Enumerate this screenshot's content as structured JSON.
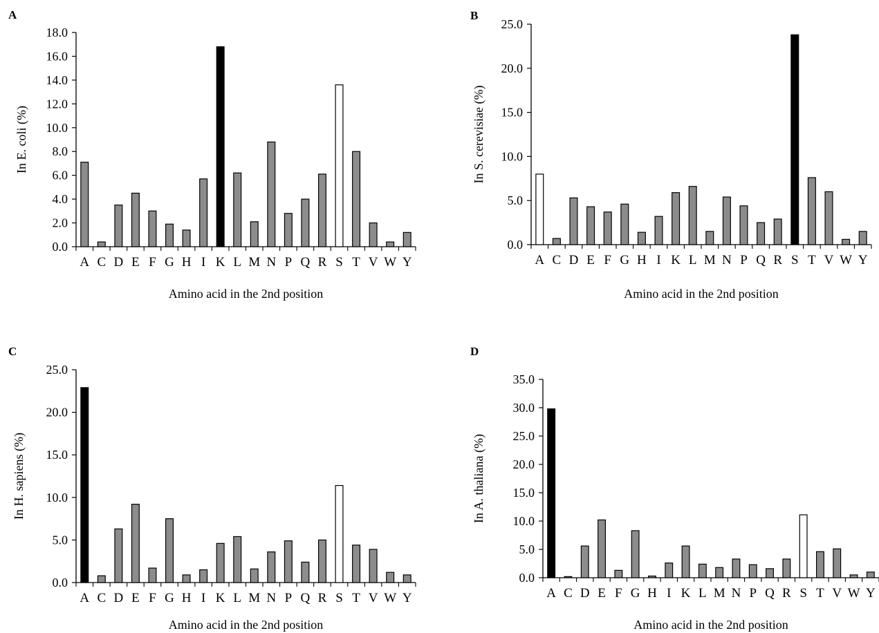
{
  "chart_data": [
    {
      "panel": "A",
      "type": "bar",
      "categories": [
        "A",
        "C",
        "D",
        "E",
        "F",
        "G",
        "H",
        "I",
        "K",
        "L",
        "M",
        "N",
        "P",
        "Q",
        "R",
        "S",
        "T",
        "V",
        "W",
        "Y"
      ],
      "values": [
        7.1,
        0.4,
        3.5,
        4.5,
        3.0,
        1.9,
        1.4,
        5.7,
        16.8,
        6.2,
        2.1,
        8.8,
        2.8,
        4.0,
        6.1,
        13.6,
        8.0,
        2.0,
        0.4,
        1.2
      ],
      "fills": [
        "gray",
        "gray",
        "gray",
        "gray",
        "gray",
        "gray",
        "gray",
        "gray",
        "black",
        "gray",
        "gray",
        "gray",
        "gray",
        "gray",
        "gray",
        "white",
        "gray",
        "gray",
        "gray",
        "gray"
      ],
      "xlabel": "Amino acid in the 2nd position",
      "ylabel": "In E. coli (%)",
      "ylim": [
        0,
        18
      ],
      "yticks": [
        "0.0",
        "2.0",
        "4.0",
        "6.0",
        "8.0",
        "10.0",
        "12.0",
        "14.0",
        "16.0",
        "18.0"
      ]
    },
    {
      "panel": "B",
      "type": "bar",
      "categories": [
        "A",
        "C",
        "D",
        "E",
        "F",
        "G",
        "H",
        "I",
        "K",
        "L",
        "M",
        "N",
        "P",
        "Q",
        "R",
        "S",
        "T",
        "V",
        "W",
        "Y"
      ],
      "values": [
        8.0,
        0.7,
        5.3,
        4.3,
        3.7,
        4.6,
        1.4,
        3.2,
        5.9,
        6.6,
        1.5,
        5.4,
        4.4,
        2.5,
        2.9,
        23.8,
        7.6,
        6.0,
        0.6,
        1.5
      ],
      "fills": [
        "white",
        "gray",
        "gray",
        "gray",
        "gray",
        "gray",
        "gray",
        "gray",
        "gray",
        "gray",
        "gray",
        "gray",
        "gray",
        "gray",
        "gray",
        "black",
        "gray",
        "gray",
        "gray",
        "gray"
      ],
      "xlabel": "Amino acid in the 2nd position",
      "ylabel": "In S. cerevisiae (%)",
      "ylim": [
        0,
        25
      ],
      "yticks": [
        "0.0",
        "5.0",
        "10.0",
        "15.0",
        "20.0",
        "25.0"
      ]
    },
    {
      "panel": "C",
      "type": "bar",
      "categories": [
        "A",
        "C",
        "D",
        "E",
        "F",
        "G",
        "H",
        "I",
        "K",
        "L",
        "M",
        "N",
        "P",
        "Q",
        "R",
        "S",
        "T",
        "V",
        "W",
        "Y"
      ],
      "values": [
        22.9,
        0.8,
        6.3,
        9.2,
        1.7,
        7.5,
        0.9,
        1.5,
        4.6,
        5.4,
        1.6,
        3.6,
        4.9,
        2.4,
        5.0,
        11.4,
        4.4,
        3.9,
        1.2,
        0.9
      ],
      "fills": [
        "black",
        "gray",
        "gray",
        "gray",
        "gray",
        "gray",
        "gray",
        "gray",
        "gray",
        "gray",
        "gray",
        "gray",
        "gray",
        "gray",
        "gray",
        "white",
        "gray",
        "gray",
        "gray",
        "gray"
      ],
      "xlabel": "Amino acid in the 2nd position",
      "ylabel": "In H. sapiens (%)",
      "ylim": [
        0,
        25
      ],
      "yticks": [
        "0.0",
        "5.0",
        "10.0",
        "15.0",
        "20.0",
        "25.0"
      ]
    },
    {
      "panel": "D",
      "type": "bar",
      "categories": [
        "A",
        "C",
        "D",
        "E",
        "F",
        "G",
        "H",
        "I",
        "K",
        "L",
        "M",
        "N",
        "P",
        "Q",
        "R",
        "S",
        "T",
        "V",
        "W",
        "Y"
      ],
      "values": [
        29.8,
        0.2,
        5.6,
        10.2,
        1.3,
        8.3,
        0.3,
        2.6,
        5.6,
        2.4,
        1.8,
        3.3,
        2.3,
        1.6,
        3.3,
        11.1,
        4.6,
        5.1,
        0.5,
        1.0
      ],
      "fills": [
        "black",
        "gray",
        "gray",
        "gray",
        "gray",
        "gray",
        "gray",
        "gray",
        "gray",
        "gray",
        "gray",
        "gray",
        "gray",
        "gray",
        "gray",
        "white",
        "gray",
        "gray",
        "gray",
        "gray"
      ],
      "xlabel": "Amino acid in the 2nd position",
      "ylabel": "In A. thaliana (%)",
      "ylim": [
        0,
        35
      ],
      "yticks": [
        "0.0",
        "5.0",
        "10.0",
        "15.0",
        "20.0",
        "25.0",
        "30.0",
        "35.0"
      ]
    }
  ],
  "colors": {
    "gray": "#8c8c8c",
    "black": "#000000",
    "white": "#ffffff",
    "stroke": "#000000"
  }
}
